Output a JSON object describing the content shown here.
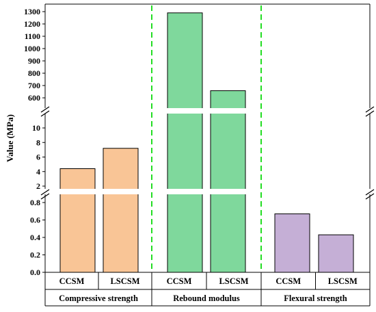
{
  "chart_data": {
    "type": "bar",
    "ylabel": "Value (MPa)",
    "groups": [
      {
        "label": "Compressive strength",
        "categories": [
          "CCSM",
          "LSCSM"
        ],
        "values": [
          4.4,
          7.2
        ],
        "color": "#f9c596",
        "segment": "mid"
      },
      {
        "label": "Rebound modulus",
        "categories": [
          "CCSM",
          "LSCSM"
        ],
        "values": [
          1290,
          658
        ],
        "color": "#7fd89c",
        "segment": "top"
      },
      {
        "label": "Flexural strength",
        "categories": [
          "CCSM",
          "LSCSM"
        ],
        "values": [
          0.67,
          0.43
        ],
        "color": "#c5afd6",
        "segment": "bottom"
      }
    ],
    "axis_segments": [
      {
        "range": [
          0.0,
          0.8
        ],
        "ticks": [
          "0.0",
          "0.2",
          "0.4",
          "0.6",
          "0.8"
        ]
      },
      {
        "range": [
          2,
          10
        ],
        "ticks": [
          "2",
          "4",
          "6",
          "8",
          "10"
        ]
      },
      {
        "range": [
          600,
          1300
        ],
        "ticks": [
          "600",
          "700",
          "800",
          "900",
          "1000",
          "1100",
          "1200",
          "1300"
        ]
      }
    ],
    "group_divider_color": "#22dd22",
    "axis_breaks": true,
    "grid": false,
    "legend": "none"
  }
}
